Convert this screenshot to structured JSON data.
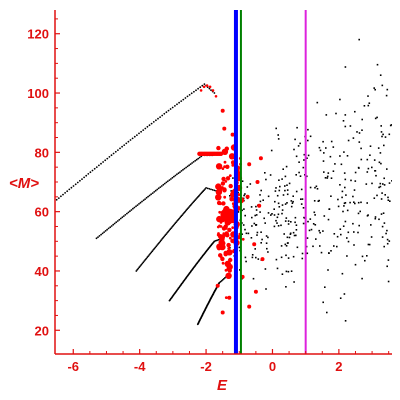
{
  "chart_data": {
    "type": "scatter",
    "title": "",
    "xlabel": "E",
    "ylabel": "<M>",
    "xlim": [
      -6.55,
      3.6
    ],
    "ylim": [
      12,
      128
    ],
    "xticks": [
      -6,
      -4,
      -2,
      0,
      2
    ],
    "yticks": [
      20,
      40,
      60,
      80,
      100,
      120
    ],
    "xtick_labels": [
      "-6",
      "-4",
      "-2",
      "0",
      "2"
    ],
    "ytick_labels": [
      "20",
      "40",
      "60",
      "80",
      "100",
      "120"
    ],
    "grid": false,
    "legend": "none",
    "colors": {
      "axis": "#e01010",
      "black_points": "#000000",
      "red_points": "#ff0000",
      "line_blue": "#0000ff",
      "line_green": "#008000",
      "line_magenta": "#dd22dd"
    },
    "vertical_lines": [
      {
        "x": -1.1,
        "color": "#0000ff",
        "width": 4
      },
      {
        "x": -0.95,
        "color": "#008000",
        "width": 2
      },
      {
        "x": 1.0,
        "color": "#dd22dd",
        "width": 2
      }
    ],
    "black_curves": [
      {
        "x_start": -6.5,
        "y_start": 64,
        "x_peak": -2.05,
        "y_peak": 103,
        "x_end": -1.75,
        "y_end": 100
      },
      {
        "x_start": -5.3,
        "y_start": 51,
        "x_peak": -2.1,
        "y_peak": 79,
        "x_end": -1.8,
        "y_end": 79
      },
      {
        "x_start": -4.1,
        "y_start": 40,
        "x_peak": -2.0,
        "y_peak": 68,
        "x_end": -1.7,
        "y_end": 67
      },
      {
        "x_start": -3.1,
        "y_start": 30,
        "x_peak": -1.75,
        "y_peak": 50,
        "x_end": -1.5,
        "y_end": 51
      },
      {
        "x_start": -2.25,
        "y_start": 22,
        "x_peak": -1.6,
        "y_peak": 36,
        "x_end": -1.4,
        "y_end": 38
      }
    ],
    "red_arc": {
      "x_start": -2.2,
      "x_end": -1.55,
      "y": 79.5
    },
    "black_cloud": {
      "x_range": [
        -1.3,
        3.6
      ],
      "y_center_start": 55,
      "y_center_end": 72,
      "spread": 10,
      "count": 420
    },
    "red_cluster": {
      "x_range": [
        -1.65,
        -0.6
      ],
      "y_range": [
        26,
        100
      ],
      "count": 140
    }
  }
}
